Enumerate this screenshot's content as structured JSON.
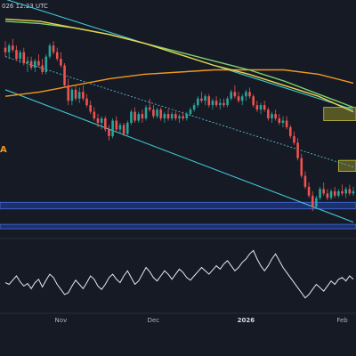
{
  "header": {
    "timestamp": "026 12:23 UTC"
  },
  "label_fragment": "A",
  "colors": {
    "background": "#161a25",
    "rsi_bg": "#161a25",
    "up": "#26a69a",
    "down": "#ef5350",
    "channel": "#3fc7d1",
    "midline": "#5bb8cf",
    "ma_green": "#7fcf73",
    "ma_yellow": "#e8d44d",
    "ma_orange": "#f29a1d",
    "fvg": "#8a8a2a",
    "support": "#1f3a8a",
    "rsi_line": "#e6e8ee"
  },
  "chart_data": [
    {
      "type": "candlestick",
      "title": "",
      "x_axis": {
        "tick_labels": [
          "Nov",
          "Dec",
          "2026",
          "Feb"
        ],
        "tick_index": [
          15,
          40,
          65,
          91
        ]
      },
      "y_axis": {
        "labels_visible": false,
        "ylim": [
          0,
          100
        ]
      },
      "grid": false,
      "candles": [
        {
          "o": 84,
          "h": 87,
          "l": 80,
          "c": 82
        },
        {
          "o": 82,
          "h": 86,
          "l": 79,
          "c": 85
        },
        {
          "o": 85,
          "h": 88,
          "l": 82,
          "c": 83
        },
        {
          "o": 83,
          "h": 85,
          "l": 78,
          "c": 79
        },
        {
          "o": 79,
          "h": 83,
          "l": 77,
          "c": 82
        },
        {
          "o": 82,
          "h": 84,
          "l": 76,
          "c": 77
        },
        {
          "o": 77,
          "h": 80,
          "l": 73,
          "c": 78
        },
        {
          "o": 78,
          "h": 80,
          "l": 74,
          "c": 75
        },
        {
          "o": 75,
          "h": 79,
          "l": 73,
          "c": 78
        },
        {
          "o": 78,
          "h": 81,
          "l": 75,
          "c": 76
        },
        {
          "o": 76,
          "h": 79,
          "l": 72,
          "c": 73
        },
        {
          "o": 73,
          "h": 81,
          "l": 72,
          "c": 80
        },
        {
          "o": 80,
          "h": 86,
          "l": 79,
          "c": 85
        },
        {
          "o": 85,
          "h": 87,
          "l": 81,
          "c": 82
        },
        {
          "o": 82,
          "h": 84,
          "l": 78,
          "c": 79
        },
        {
          "o": 79,
          "h": 82,
          "l": 75,
          "c": 76
        },
        {
          "o": 76,
          "h": 77,
          "l": 66,
          "c": 67
        },
        {
          "o": 67,
          "h": 70,
          "l": 58,
          "c": 60
        },
        {
          "o": 60,
          "h": 66,
          "l": 58,
          "c": 65
        },
        {
          "o": 65,
          "h": 67,
          "l": 60,
          "c": 61
        },
        {
          "o": 61,
          "h": 66,
          "l": 59,
          "c": 64
        },
        {
          "o": 64,
          "h": 67,
          "l": 60,
          "c": 61
        },
        {
          "o": 61,
          "h": 63,
          "l": 57,
          "c": 58
        },
        {
          "o": 58,
          "h": 60,
          "l": 54,
          "c": 55
        },
        {
          "o": 55,
          "h": 57,
          "l": 51,
          "c": 52
        },
        {
          "o": 52,
          "h": 54,
          "l": 48,
          "c": 50
        },
        {
          "o": 50,
          "h": 53,
          "l": 47,
          "c": 52
        },
        {
          "o": 52,
          "h": 53,
          "l": 46,
          "c": 47
        },
        {
          "o": 47,
          "h": 49,
          "l": 42,
          "c": 44
        },
        {
          "o": 44,
          "h": 52,
          "l": 43,
          "c": 51
        },
        {
          "o": 51,
          "h": 53,
          "l": 46,
          "c": 47
        },
        {
          "o": 47,
          "h": 50,
          "l": 45,
          "c": 49
        },
        {
          "o": 49,
          "h": 50,
          "l": 44,
          "c": 45
        },
        {
          "o": 45,
          "h": 51,
          "l": 44,
          "c": 50
        },
        {
          "o": 50,
          "h": 56,
          "l": 49,
          "c": 55
        },
        {
          "o": 55,
          "h": 57,
          "l": 50,
          "c": 51
        },
        {
          "o": 51,
          "h": 55,
          "l": 50,
          "c": 54
        },
        {
          "o": 54,
          "h": 56,
          "l": 50,
          "c": 52
        },
        {
          "o": 52,
          "h": 58,
          "l": 51,
          "c": 57
        },
        {
          "o": 57,
          "h": 61,
          "l": 55,
          "c": 56
        },
        {
          "o": 56,
          "h": 58,
          "l": 52,
          "c": 53
        },
        {
          "o": 53,
          "h": 57,
          "l": 52,
          "c": 56
        },
        {
          "o": 56,
          "h": 57,
          "l": 51,
          "c": 52
        },
        {
          "o": 52,
          "h": 55,
          "l": 50,
          "c": 54
        },
        {
          "o": 54,
          "h": 56,
          "l": 51,
          "c": 52
        },
        {
          "o": 52,
          "h": 55,
          "l": 51,
          "c": 54
        },
        {
          "o": 54,
          "h": 55,
          "l": 51,
          "c": 52
        },
        {
          "o": 52,
          "h": 54,
          "l": 50,
          "c": 53
        },
        {
          "o": 53,
          "h": 55,
          "l": 51,
          "c": 52
        },
        {
          "o": 52,
          "h": 55,
          "l": 51,
          "c": 54
        },
        {
          "o": 54,
          "h": 57,
          "l": 53,
          "c": 56
        },
        {
          "o": 56,
          "h": 59,
          "l": 55,
          "c": 58
        },
        {
          "o": 58,
          "h": 62,
          "l": 57,
          "c": 61
        },
        {
          "o": 61,
          "h": 64,
          "l": 59,
          "c": 60
        },
        {
          "o": 60,
          "h": 63,
          "l": 58,
          "c": 62
        },
        {
          "o": 62,
          "h": 63,
          "l": 57,
          "c": 58
        },
        {
          "o": 58,
          "h": 61,
          "l": 56,
          "c": 60
        },
        {
          "o": 60,
          "h": 62,
          "l": 57,
          "c": 58
        },
        {
          "o": 58,
          "h": 61,
          "l": 56,
          "c": 59
        },
        {
          "o": 59,
          "h": 61,
          "l": 57,
          "c": 58
        },
        {
          "o": 58,
          "h": 62,
          "l": 57,
          "c": 61
        },
        {
          "o": 61,
          "h": 65,
          "l": 60,
          "c": 64
        },
        {
          "o": 64,
          "h": 67,
          "l": 61,
          "c": 62
        },
        {
          "o": 62,
          "h": 64,
          "l": 59,
          "c": 60
        },
        {
          "o": 60,
          "h": 63,
          "l": 58,
          "c": 62
        },
        {
          "o": 62,
          "h": 65,
          "l": 60,
          "c": 64
        },
        {
          "o": 64,
          "h": 66,
          "l": 61,
          "c": 62
        },
        {
          "o": 62,
          "h": 63,
          "l": 57,
          "c": 58
        },
        {
          "o": 58,
          "h": 60,
          "l": 55,
          "c": 56
        },
        {
          "o": 56,
          "h": 59,
          "l": 54,
          "c": 58
        },
        {
          "o": 58,
          "h": 60,
          "l": 55,
          "c": 56
        },
        {
          "o": 56,
          "h": 57,
          "l": 51,
          "c": 52
        },
        {
          "o": 52,
          "h": 55,
          "l": 50,
          "c": 54
        },
        {
          "o": 54,
          "h": 56,
          "l": 51,
          "c": 52
        },
        {
          "o": 52,
          "h": 54,
          "l": 49,
          "c": 50
        },
        {
          "o": 50,
          "h": 53,
          "l": 48,
          "c": 51
        },
        {
          "o": 51,
          "h": 53,
          "l": 47,
          "c": 48
        },
        {
          "o": 48,
          "h": 49,
          "l": 43,
          "c": 44
        },
        {
          "o": 44,
          "h": 46,
          "l": 40,
          "c": 41
        },
        {
          "o": 41,
          "h": 43,
          "l": 33,
          "c": 34
        },
        {
          "o": 34,
          "h": 36,
          "l": 25,
          "c": 26
        },
        {
          "o": 26,
          "h": 28,
          "l": 20,
          "c": 21
        },
        {
          "o": 21,
          "h": 23,
          "l": 16,
          "c": 17
        },
        {
          "o": 17,
          "h": 19,
          "l": 10,
          "c": 12
        },
        {
          "o": 12,
          "h": 17,
          "l": 11,
          "c": 16
        },
        {
          "o": 16,
          "h": 21,
          "l": 15,
          "c": 20
        },
        {
          "o": 20,
          "h": 23,
          "l": 17,
          "c": 18
        },
        {
          "o": 18,
          "h": 20,
          "l": 15,
          "c": 16
        },
        {
          "o": 16,
          "h": 20,
          "l": 15,
          "c": 19
        },
        {
          "o": 19,
          "h": 21,
          "l": 16,
          "c": 17
        },
        {
          "o": 17,
          "h": 20,
          "l": 16,
          "c": 19
        },
        {
          "o": 19,
          "h": 22,
          "l": 17,
          "c": 18
        },
        {
          "o": 18,
          "h": 21,
          "l": 16,
          "c": 20
        },
        {
          "o": 20,
          "h": 22,
          "l": 17,
          "c": 18
        },
        {
          "o": 18,
          "h": 21,
          "l": 17,
          "c": 19
        }
      ],
      "overlays": {
        "ma_green": [
          [
            0,
            96
          ],
          [
            10,
            95
          ],
          [
            20,
            93
          ],
          [
            30,
            90
          ],
          [
            40,
            86
          ],
          [
            50,
            82
          ],
          [
            60,
            78
          ],
          [
            70,
            74
          ],
          [
            80,
            69
          ],
          [
            90,
            63
          ],
          [
            100,
            57
          ]
        ],
        "ma_yellow": [
          [
            0,
            97
          ],
          [
            10,
            96
          ],
          [
            20,
            93
          ],
          [
            30,
            90
          ],
          [
            40,
            86
          ],
          [
            50,
            81
          ],
          [
            60,
            76
          ],
          [
            70,
            72
          ],
          [
            80,
            67
          ],
          [
            90,
            62
          ],
          [
            100,
            55
          ]
        ],
        "ma_orange": [
          [
            0,
            62
          ],
          [
            10,
            64
          ],
          [
            20,
            67
          ],
          [
            30,
            70
          ],
          [
            40,
            72
          ],
          [
            50,
            73
          ],
          [
            60,
            74
          ],
          [
            70,
            74
          ],
          [
            80,
            74
          ],
          [
            90,
            72
          ],
          [
            100,
            68
          ]
        ],
        "channel_upper": [
          [
            0,
            106
          ],
          [
            100,
            56
          ]
        ],
        "channel_lower": [
          [
            0,
            65
          ],
          [
            100,
            5
          ]
        ],
        "midline": [
          [
            0,
            80
          ],
          [
            100,
            30
          ]
        ]
      },
      "zones": [
        {
          "kind": "fvg",
          "from_index": 86,
          "y_low": 51,
          "y_high": 57
        },
        {
          "kind": "fvg",
          "from_index": 90,
          "y_low": 28,
          "y_high": 33
        },
        {
          "kind": "support",
          "from_index": 0,
          "y_low": 11,
          "y_high": 14
        },
        {
          "kind": "support",
          "from_index": 0,
          "y_low": 2,
          "y_high": 4
        }
      ]
    },
    {
      "type": "line",
      "title": "",
      "series": [
        {
          "values": [
            52,
            50,
            55,
            60,
            53,
            48,
            51,
            45,
            52,
            56,
            47,
            55,
            62,
            58,
            50,
            44,
            38,
            40,
            48,
            55,
            50,
            45,
            52,
            60,
            56,
            48,
            44,
            50,
            58,
            62,
            56,
            52,
            60,
            66,
            58,
            50,
            54,
            62,
            70,
            65,
            58,
            54,
            60,
            66,
            62,
            56,
            62,
            68,
            64,
            58,
            55,
            60,
            65,
            70,
            66,
            62,
            67,
            72,
            68,
            74,
            78,
            72,
            66,
            70,
            76,
            80,
            86,
            90,
            80,
            72,
            66,
            72,
            80,
            86,
            78,
            70,
            64,
            58,
            52,
            46,
            40,
            34,
            38,
            44,
            50,
            46,
            42,
            48,
            54,
            50,
            56,
            58,
            54,
            60,
            56
          ]
        }
      ],
      "ylim": [
        20,
        100
      ],
      "grid": false
    }
  ]
}
